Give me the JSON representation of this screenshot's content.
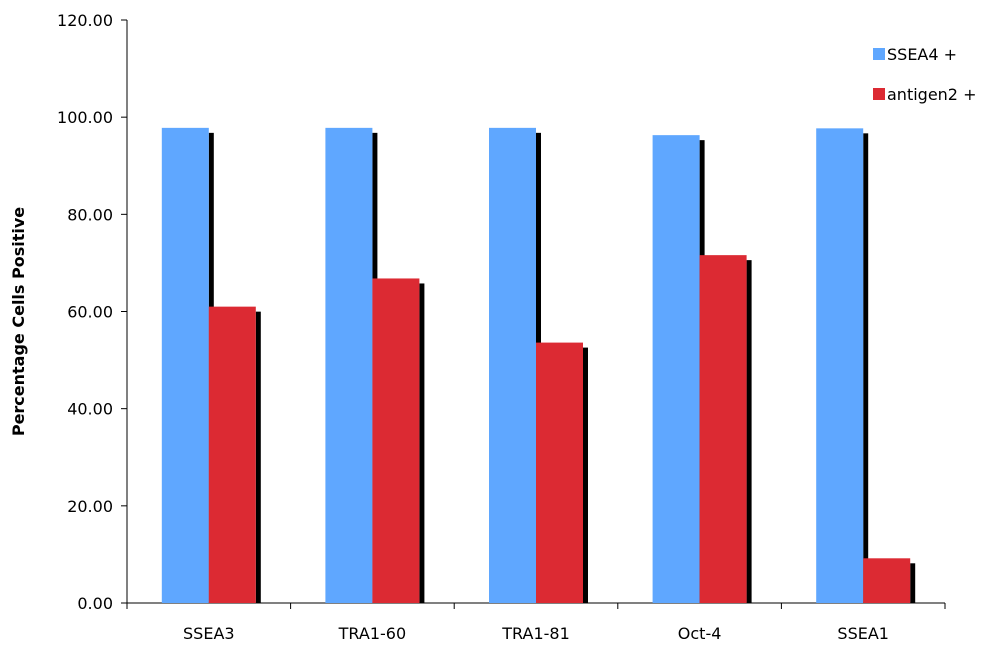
{
  "chart_data": {
    "type": "bar",
    "title": "",
    "xlabel": "",
    "ylabel": "Percentage Cells Positive",
    "categories": [
      "SSEA3",
      "TRA1-60",
      "TRA1-81",
      "Oct-4",
      "SSEA1"
    ],
    "series": [
      {
        "name": "SSEA4 +",
        "color": "#5fa7ff",
        "values": [
          97.8,
          97.8,
          97.8,
          96.3,
          97.7
        ]
      },
      {
        "name": "antigen2 +",
        "color": "#dc2a33",
        "values": [
          61.0,
          66.8,
          53.6,
          71.6,
          9.2
        ]
      }
    ],
    "ylim": [
      0,
      120
    ],
    "yticks": [
      "0.00",
      "20.00",
      "40.00",
      "60.00",
      "80.00",
      "100.00",
      "120.00"
    ],
    "yticks_values": [
      0,
      20,
      40,
      60,
      80,
      100,
      120
    ],
    "grid": false,
    "legend_position": "top-right",
    "shadow_color": "#000000"
  }
}
